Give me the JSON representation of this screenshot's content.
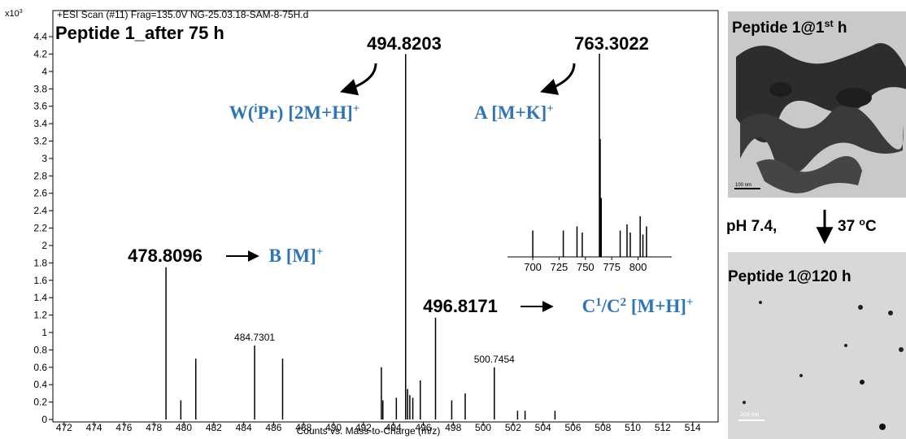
{
  "chart_data": {
    "type": "stem",
    "title": "Peptide 1_after 75 h",
    "header": "+ESI Scan (#11) Frag=135.0V NG-25.03.18-SAM-8-75H.d",
    "x_label": "Counts vs. Mass-to-Charge (m/z)",
    "y_multiplier": [
      {
        "t": "x10"
      },
      {
        "sup": "3"
      }
    ],
    "color": "#000000",
    "x": [
      478.8096,
      479.8,
      480.8,
      484.7301,
      486.6,
      493.2,
      493.3,
      494.2,
      494.8203,
      494.95,
      495.1,
      495.3,
      495.8,
      496.8171,
      497.9,
      498.8,
      500.7454,
      502.3,
      502.8,
      504.8
    ],
    "values": [
      1.75,
      0.22,
      0.7,
      0.85,
      0.7,
      0.6,
      0.22,
      0.25,
      4.2,
      0.35,
      0.28,
      0.25,
      0.45,
      1.17,
      0.22,
      0.3,
      0.6,
      0.1,
      0.1,
      0.1
    ],
    "peak_labels": [
      null,
      null,
      null,
      "484.7301",
      null,
      null,
      null,
      null,
      null,
      null,
      null,
      null,
      null,
      null,
      null,
      null,
      "500.7454",
      null,
      null,
      null
    ],
    "xlim": [
      471.25,
      515.7
    ],
    "ylim": [
      0,
      4.7
    ],
    "xticks": [
      472,
      474,
      476,
      478,
      480,
      482,
      484,
      486,
      488,
      490,
      492,
      494,
      496,
      498,
      500,
      502,
      504,
      506,
      508,
      510,
      512,
      514
    ],
    "yticks": [
      0,
      0.2,
      0.4,
      0.6,
      0.8,
      1,
      1.2,
      1.4,
      1.6,
      1.8,
      2,
      2.2,
      2.4,
      2.6,
      2.8,
      3,
      3.2,
      3.4,
      3.6,
      3.8,
      4,
      4.2,
      4.4
    ],
    "annotations": [
      {
        "text": "494.8203",
        "species": [
          {
            "t": "W("
          },
          {
            "sup": "i"
          },
          {
            "t": "Pr) [2M+H]"
          },
          {
            "sup": "+"
          }
        ]
      },
      {
        "text": "763.3022",
        "species": [
          {
            "t": "A [M+K]"
          },
          {
            "sup": "+"
          }
        ]
      },
      {
        "text": "478.8096",
        "species": [
          {
            "t": "B [M]"
          },
          {
            "sup": "+"
          }
        ]
      },
      {
        "text": "496.8171",
        "species": [
          {
            "t": "C"
          },
          {
            "sup": "1"
          },
          {
            "t": "/C"
          },
          {
            "sup": "2"
          },
          {
            "t": " [M+H]"
          },
          {
            "sup": "+"
          }
        ]
      }
    ],
    "annotation_color": "#2e75b6",
    "inset": {
      "x": [
        700,
        729,
        742,
        747,
        763.3022,
        764,
        765,
        783,
        789.5,
        792.6,
        802,
        804.6,
        808
      ],
      "values": [
        13,
        13,
        15,
        12,
        100,
        58,
        29,
        13,
        16,
        12,
        20,
        11,
        15
      ],
      "xlim": [
        676,
        832
      ],
      "ylim": [
        0,
        100
      ],
      "xticks": [
        700,
        725,
        750,
        775,
        800
      ]
    }
  },
  "side_panel": {
    "top_caption": [
      {
        "t": "Peptide 1@1"
      },
      {
        "sup": "st"
      },
      {
        "t": " h"
      }
    ],
    "top_scale": "100 nm",
    "condition_left": "pH 7.4,",
    "condition_right": [
      {
        "t": "37 "
      },
      {
        "sup": "o"
      },
      {
        "t": "C"
      }
    ],
    "bottom_caption": "Peptide 1@120 h",
    "bottom_scale": "200 nm"
  }
}
